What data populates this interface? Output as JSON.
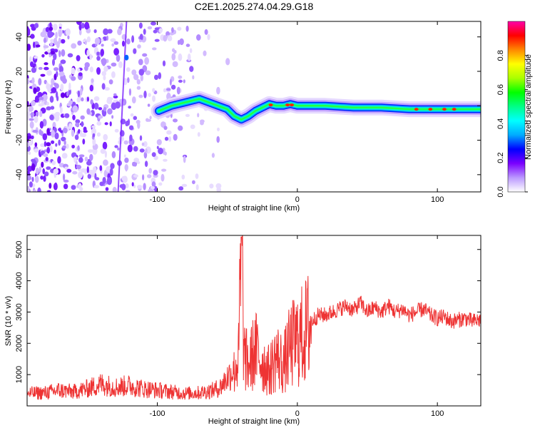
{
  "chart_data": [
    {
      "type": "heatmap",
      "title": "C2E1.2025.274.04.29.G18",
      "xlabel": "Height of straight line (km)",
      "ylabel": "Frequency (Hz)",
      "xlim": [
        -193,
        131
      ],
      "ylim": [
        -50,
        49
      ],
      "xticks": [
        -100,
        0,
        100
      ],
      "yticks": [
        -40,
        -20,
        0,
        20,
        40
      ],
      "colorbar": {
        "label": "Normalized spectral amplitude",
        "range": [
          0,
          1
        ],
        "ticks": [
          "0.0",
          "0.2",
          "0.4",
          "0.6",
          "0.8"
        ],
        "colors": [
          "#ffffff",
          "#bb99ff",
          "#7b00ff",
          "#0000ff",
          "#00aaff",
          "#00ffff",
          "#00ff88",
          "#00ff00",
          "#aaff00",
          "#ffff00",
          "#ff8800",
          "#ff0000",
          "#ff00aa"
        ]
      },
      "ridge": {
        "description_points_x": [
          -99,
          -90,
          -80,
          -70,
          -60,
          -50,
          -45,
          -40,
          -35,
          -30,
          -25,
          -20,
          -15,
          -10,
          -5,
          0,
          10,
          20,
          40,
          60,
          80,
          100,
          120,
          131
        ],
        "description_points_y": [
          -3,
          0,
          2,
          4,
          1,
          -2,
          -6,
          -8,
          -6,
          -3,
          -1,
          1,
          0,
          0,
          1,
          0,
          0,
          0,
          -1,
          -1,
          -2,
          -2,
          -2,
          -2
        ],
        "noise_region_x": [
          -193,
          -60
        ],
        "onset_x": -99
      }
    },
    {
      "type": "line",
      "xlabel": "Height of straight line (km)",
      "ylabel": "SNR (10 * v/v)",
      "xlim": [
        -193,
        131
      ],
      "ylim": [
        0,
        5450
      ],
      "xticks": [
        -100,
        0,
        100
      ],
      "yticks": [
        1000,
        2000,
        3000,
        4000,
        5000
      ],
      "color": "#ee3333",
      "series": [
        {
          "name": "SNR",
          "x": [
            -193,
            -180,
            -170,
            -160,
            -150,
            -140,
            -130,
            -120,
            -110,
            -100,
            -90,
            -80,
            -70,
            -60,
            -55,
            -50,
            -45,
            -42,
            -40,
            -38,
            -35,
            -30,
            -25,
            -20,
            -15,
            -10,
            -5,
            0,
            5,
            10,
            15,
            20,
            25,
            30,
            35,
            40,
            45,
            50,
            55,
            60,
            65,
            70,
            75,
            80,
            85,
            90,
            95,
            100,
            105,
            110,
            115,
            120,
            125,
            131
          ],
          "values": [
            400,
            420,
            500,
            450,
            550,
            700,
            600,
            650,
            550,
            500,
            450,
            400,
            420,
            500,
            600,
            900,
            1200,
            1500,
            5300,
            1600,
            1300,
            1800,
            1400,
            1100,
            1600,
            1300,
            1900,
            2100,
            2300,
            2700,
            2900,
            2900,
            3000,
            3100,
            3200,
            3050,
            3300,
            3000,
            3150,
            3000,
            3200,
            3000,
            3100,
            2900,
            3000,
            3100,
            2900,
            2800,
            2850,
            2700,
            2750,
            2800,
            2700,
            2750
          ]
        }
      ]
    }
  ]
}
